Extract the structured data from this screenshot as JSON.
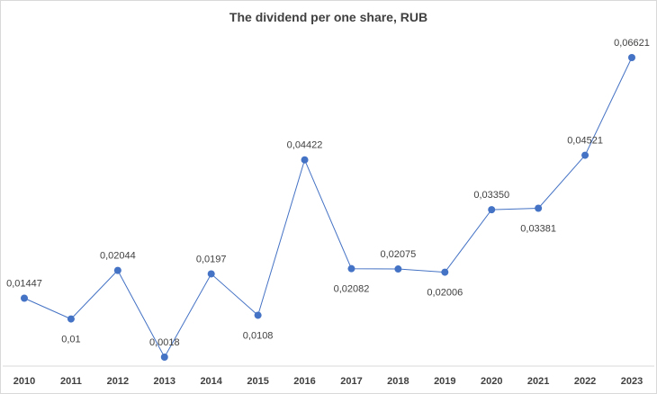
{
  "chart_data": {
    "type": "line",
    "title": "The dividend per one share, RUB",
    "xlabel": "",
    "ylabel": "",
    "x": [
      "2010",
      "2011",
      "2012",
      "2013",
      "2014",
      "2015",
      "2016",
      "2017",
      "2018",
      "2019",
      "2020",
      "2021",
      "2022",
      "2023"
    ],
    "series": [
      {
        "values": [
          0.01447,
          0.01,
          0.02044,
          0.0018,
          0.0197,
          0.0108,
          0.04422,
          0.02082,
          0.02075,
          0.02006,
          0.0335,
          0.03381,
          0.04521,
          0.06621
        ],
        "labels": [
          "0,01447",
          "0,01",
          "0,02044",
          "0,0018",
          "0,0197",
          "0,0108",
          "0,04422",
          "0,02082",
          "0,02075",
          "0,02006",
          "0,03350",
          "0,03381",
          "0,04521",
          "0,06621"
        ],
        "label_side": [
          "above",
          "below",
          "above",
          "above",
          "above",
          "below",
          "above",
          "below",
          "above",
          "below",
          "above",
          "below",
          "above",
          "above"
        ],
        "color": "#4472c4"
      }
    ],
    "ylim": [
      0,
      0.07
    ],
    "grid": false,
    "legend": "none"
  }
}
